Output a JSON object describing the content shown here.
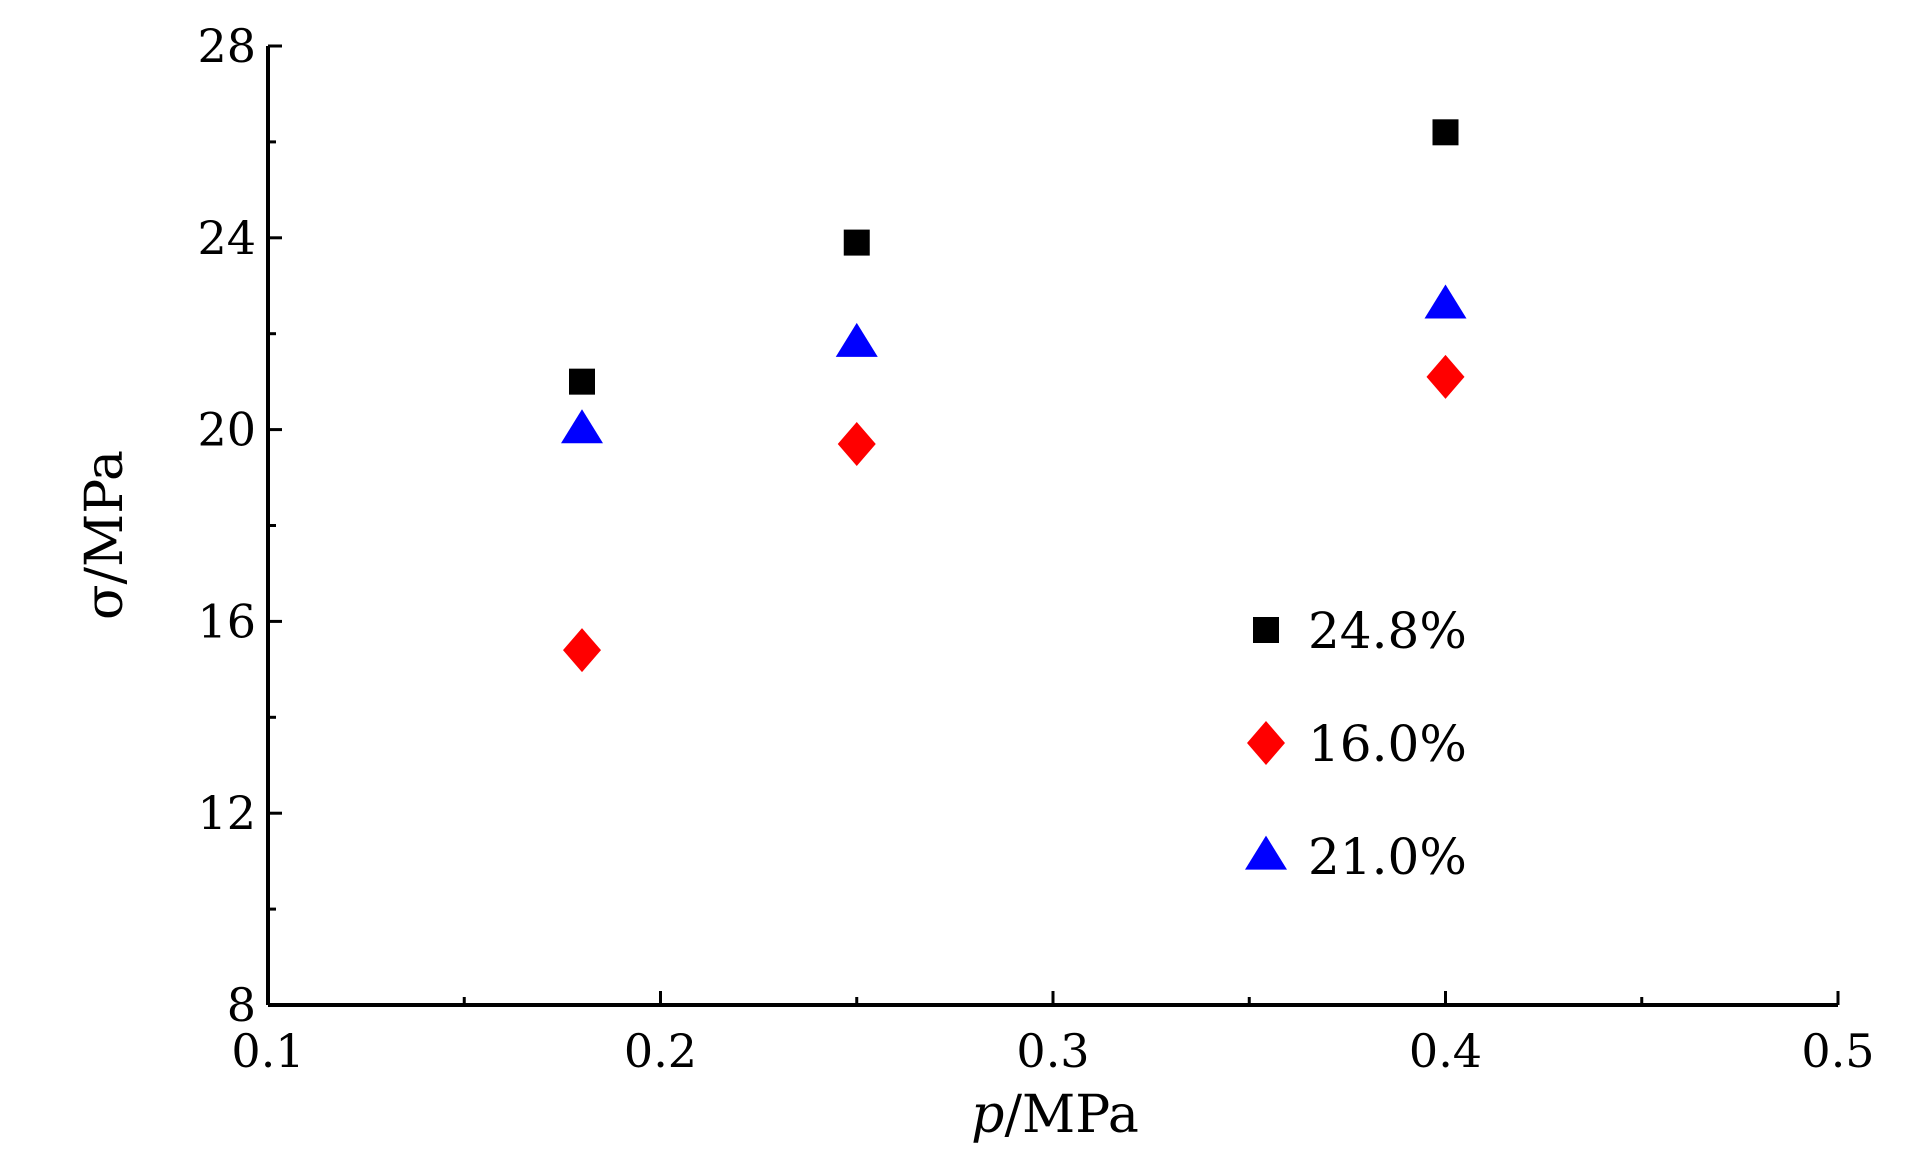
{
  "chart_data": {
    "type": "scatter",
    "xlabel_var": "p",
    "xlabel_unit": "/MPa",
    "ylabel": "σ/MPa",
    "xlim": [
      0.1,
      0.5
    ],
    "ylim": [
      8,
      28
    ],
    "xticks": [
      "0.1",
      "0.2",
      "0.3",
      "0.4",
      "0.5"
    ],
    "xtick_values": [
      0.1,
      0.2,
      0.3,
      0.4,
      0.5
    ],
    "yticks": [
      "8",
      "12",
      "16",
      "20",
      "24",
      "28"
    ],
    "ytick_values": [
      8,
      12,
      16,
      20,
      24,
      28
    ],
    "grid": false,
    "legend_position": "center-right",
    "series": [
      {
        "name": "24.8%",
        "marker": "square",
        "color": "#000000",
        "x": [
          0.18,
          0.25,
          0.4
        ],
        "y": [
          21.0,
          23.9,
          26.2
        ]
      },
      {
        "name": "16.0%",
        "marker": "diamond",
        "color": "#ff0000",
        "x": [
          0.18,
          0.25,
          0.4
        ],
        "y": [
          15.4,
          19.7,
          21.1
        ]
      },
      {
        "name": "21.0%",
        "marker": "triangle",
        "color": "#0000ff",
        "x": [
          0.18,
          0.25,
          0.4
        ],
        "y": [
          20.0,
          21.8,
          22.6
        ]
      }
    ]
  }
}
